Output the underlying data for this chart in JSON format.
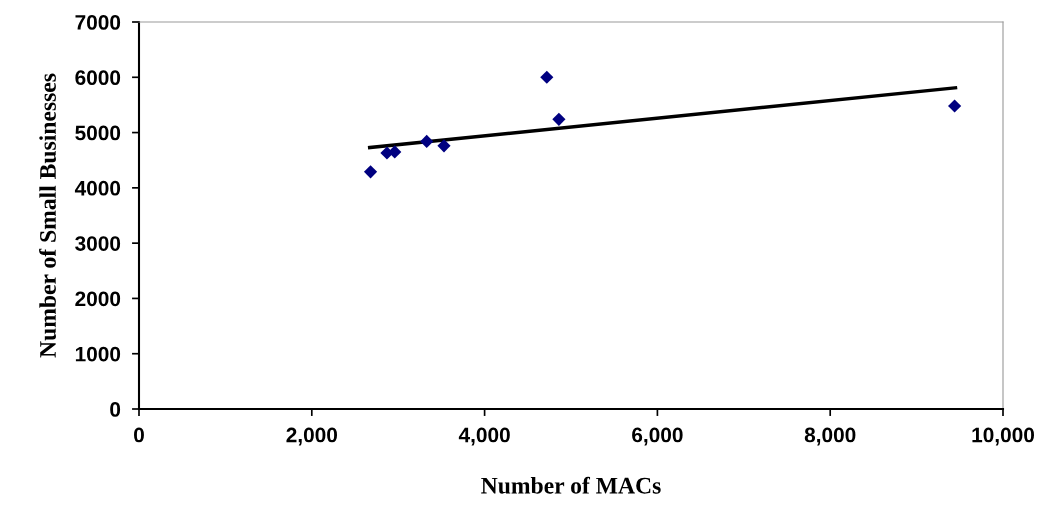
{
  "chart_data": {
    "type": "scatter",
    "xlabel": "Number of MACs",
    "ylabel": "Number of Small Businesses",
    "series": [
      {
        "color": "#000080",
        "marker": "diamond",
        "x": [
          2680,
          2870,
          2960,
          3330,
          3530,
          4720,
          4860,
          9440
        ],
        "values": [
          4290,
          4630,
          4650,
          4840,
          4760,
          6000,
          5240,
          5480
        ]
      },
      {
        "type": "line",
        "color": "#000000",
        "marker": "none",
        "line_style": "solid",
        "x": [
          2670,
          9450
        ],
        "values": [
          4730,
          5810
        ]
      }
    ],
    "xlim": [
      0,
      10000
    ],
    "xticks": [
      {
        "value": 0,
        "label": "0"
      },
      {
        "value": 2000,
        "label": "2,000"
      },
      {
        "value": 4000,
        "label": "4,000"
      },
      {
        "value": 6000,
        "label": "6,000"
      },
      {
        "value": 8000,
        "label": "8,000"
      },
      {
        "value": 10000,
        "label": "10,000"
      }
    ],
    "ylim": [
      0,
      7000
    ],
    "yticks": [
      0,
      1000,
      2000,
      3000,
      4000,
      5000,
      6000,
      7000
    ],
    "grid": false,
    "legend": false
  }
}
